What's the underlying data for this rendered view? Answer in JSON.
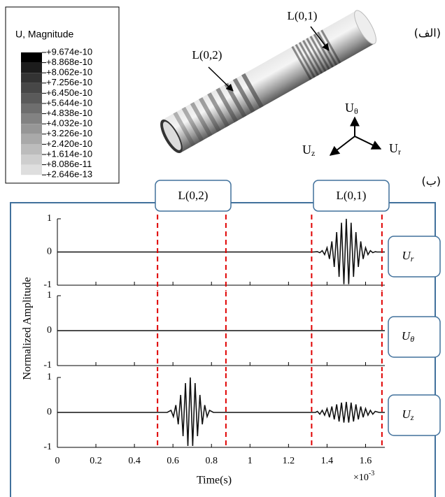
{
  "legend": {
    "title": "U, Magnitude",
    "labels": [
      "+9.674e-10",
      "+8.868e-10",
      "+8.062e-10",
      "+7.256e-10",
      "+6.450e-10",
      "+5.644e-10",
      "+4.838e-10",
      "+4.032e-10",
      "+3.226e-10",
      "+2.420e-10",
      "+1.614e-10",
      "+8.086e-11",
      "+2.646e-13"
    ],
    "colors": [
      "#000000",
      "#1c1c1c",
      "#333333",
      "#474747",
      "#5a5a5a",
      "#6e6e6e",
      "#828282",
      "#969696",
      "#a9a9a9",
      "#bcbcbc",
      "#cecece",
      "#dedede"
    ]
  },
  "pipe_labels": {
    "upper": "L(0,1)",
    "lower": "L(0,2)"
  },
  "panel_labels": {
    "top": "(الف)",
    "bottom": "(ب)"
  },
  "axes_triad": {
    "up": {
      "main": "U",
      "sub": "θ"
    },
    "left": {
      "main": "U",
      "sub": "z"
    },
    "right": {
      "main": "U",
      "sub": "r"
    }
  },
  "mode_labels": [
    "L(0,2)",
    "L(0,1)"
  ],
  "ylabel": "Normalized Amplitude",
  "component_labels": [
    {
      "main": "U",
      "sub": "r"
    },
    {
      "main": "U",
      "sub": "θ"
    },
    {
      "main": "U",
      "sub": "z"
    }
  ],
  "chart_data": [
    {
      "type": "line",
      "color": "#111111",
      "x": [
        0,
        1.33,
        1.35,
        1.3625,
        1.375,
        1.3875,
        1.4,
        1.4125,
        1.425,
        1.4375,
        1.45,
        1.4625,
        1.475,
        1.4875,
        1.5,
        1.5125,
        1.525,
        1.5375,
        1.55,
        1.5625,
        1.575,
        1.5875,
        1.6,
        1.6125,
        1.625,
        1.6375,
        1.65,
        1.66,
        1.7
      ],
      "values": [
        0,
        0,
        0.01,
        -0.02,
        0.04,
        -0.08,
        0.13,
        -0.21,
        0.32,
        -0.45,
        0.6,
        -0.75,
        0.88,
        -0.97,
        1,
        -0.97,
        0.88,
        -0.75,
        0.6,
        -0.45,
        0.32,
        -0.21,
        0.13,
        -0.08,
        0.04,
        -0.02,
        0.01,
        0,
        0
      ],
      "xlim": [
        0,
        1.7
      ],
      "ylim": [
        -1,
        1
      ],
      "yticks": [
        1,
        0,
        -1
      ],
      "xticks": [
        0,
        0.2,
        0.4,
        0.6,
        0.8,
        1,
        1.2,
        1.4,
        1.6
      ],
      "vlines": [
        0.52,
        0.875,
        1.32,
        1.685
      ],
      "vline_color": "#e00000",
      "xtick_labels": false
    },
    {
      "type": "line",
      "color": "#111111",
      "x": [
        0,
        1.7
      ],
      "values": [
        0,
        0
      ],
      "xlim": [
        0,
        1.7
      ],
      "ylim": [
        -1,
        1
      ],
      "yticks": [
        1,
        0,
        -1
      ],
      "xticks": [
        0,
        0.2,
        0.4,
        0.6,
        0.8,
        1,
        1.2,
        1.4,
        1.6
      ],
      "vlines": [
        0.52,
        0.875,
        1.32,
        1.685
      ],
      "vline_color": "#e00000",
      "xtick_labels": false
    },
    {
      "type": "line",
      "color": "#111111",
      "x": [
        0,
        0.57,
        0.59,
        0.6025,
        0.615,
        0.6275,
        0.64,
        0.6525,
        0.665,
        0.6775,
        0.69,
        0.7025,
        0.715,
        0.7275,
        0.74,
        0.7525,
        0.765,
        0.7775,
        0.79,
        0.81,
        1.34,
        1.35,
        1.3625,
        1.375,
        1.3875,
        1.4,
        1.4125,
        1.425,
        1.4375,
        1.45,
        1.4625,
        1.475,
        1.4875,
        1.5,
        1.5125,
        1.525,
        1.5375,
        1.55,
        1.5625,
        1.575,
        1.5875,
        1.6,
        1.6125,
        1.625,
        1.6375,
        1.65,
        1.67,
        1.7
      ],
      "values": [
        0,
        0,
        0.06,
        -0.12,
        0.21,
        -0.34,
        0.5,
        -0.68,
        0.84,
        -0.96,
        1,
        -0.96,
        0.84,
        -0.68,
        0.5,
        -0.34,
        0.21,
        -0.12,
        0.06,
        0,
        0,
        0.03,
        -0.05,
        0.06,
        -0.08,
        0.11,
        -0.14,
        0.17,
        -0.2,
        0.23,
        -0.26,
        0.28,
        -0.29,
        0.3,
        -0.29,
        0.28,
        -0.26,
        0.23,
        -0.2,
        0.17,
        -0.14,
        0.11,
        -0.08,
        0.06,
        -0.05,
        0.03,
        0,
        0
      ],
      "xlim": [
        0,
        1.7
      ],
      "ylim": [
        -1,
        1
      ],
      "yticks": [
        1,
        0,
        -1
      ],
      "xticks": [
        0,
        0.2,
        0.4,
        0.6,
        0.8,
        1,
        1.2,
        1.4,
        1.6
      ],
      "vlines": [
        0.52,
        0.875,
        1.32,
        1.685
      ],
      "vline_color": "#e00000",
      "xtick_labels": true,
      "xlabel": "Time(s)",
      "x_scale_label": {
        "base": "×10",
        "exp": "-3"
      }
    }
  ]
}
